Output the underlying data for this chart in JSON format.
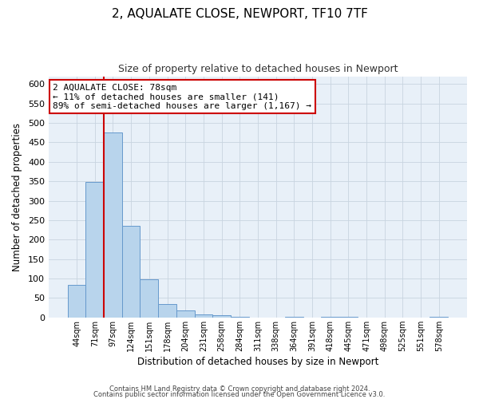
{
  "title": "2, AQUALATE CLOSE, NEWPORT, TF10 7TF",
  "subtitle": "Size of property relative to detached houses in Newport",
  "xlabel": "Distribution of detached houses by size in Newport",
  "ylabel": "Number of detached properties",
  "bin_labels": [
    "44sqm",
    "71sqm",
    "97sqm",
    "124sqm",
    "151sqm",
    "178sqm",
    "204sqm",
    "231sqm",
    "258sqm",
    "284sqm",
    "311sqm",
    "338sqm",
    "364sqm",
    "391sqm",
    "418sqm",
    "445sqm",
    "471sqm",
    "498sqm",
    "525sqm",
    "551sqm",
    "578sqm"
  ],
  "bar_values": [
    83,
    348,
    476,
    236,
    97,
    35,
    18,
    8,
    5,
    1,
    0,
    0,
    2,
    0,
    1,
    1,
    0,
    0,
    0,
    0,
    1
  ],
  "bar_color": "#b8d4ec",
  "bar_edge_color": "#6699cc",
  "vline_position": 1.5,
  "vline_color": "#cc0000",
  "ylim": [
    0,
    620
  ],
  "yticks": [
    0,
    50,
    100,
    150,
    200,
    250,
    300,
    350,
    400,
    450,
    500,
    550,
    600
  ],
  "annotation_title": "2 AQUALATE CLOSE: 78sqm",
  "annotation_line1": "← 11% of detached houses are smaller (141)",
  "annotation_line2": "89% of semi-detached houses are larger (1,167) →",
  "annotation_box_color": "#ffffff",
  "annotation_box_edge": "#cc0000",
  "footer_line1": "Contains HM Land Registry data © Crown copyright and database right 2024.",
  "footer_line2": "Contains public sector information licensed under the Open Government Licence v3.0.",
  "bg_color": "#ffffff",
  "plot_bg_color": "#e8f0f8",
  "grid_color": "#c8d4e0",
  "title_fontsize": 11,
  "subtitle_fontsize": 9,
  "annotation_fontsize": 8
}
